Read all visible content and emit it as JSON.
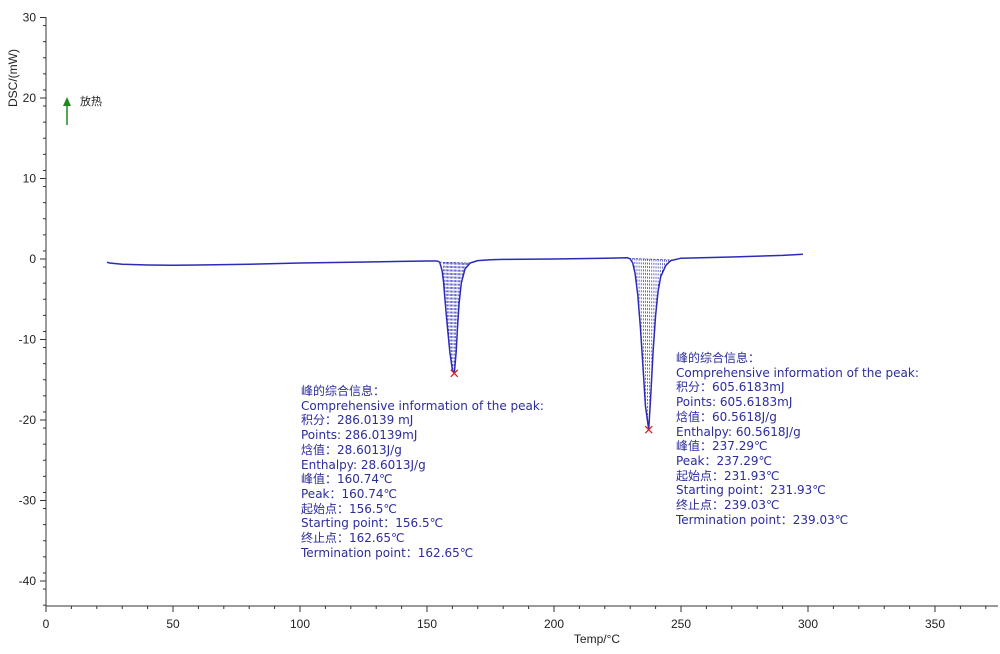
{
  "chart_data": {
    "type": "line",
    "xlabel": "Temp/°C",
    "ylabel": "DSC/(mW)",
    "xlim": [
      0,
      375
    ],
    "ylim": [
      -43,
      30
    ],
    "x_ticks": [
      0,
      50,
      100,
      150,
      200,
      250,
      300,
      350
    ],
    "y_ticks": [
      30,
      20,
      10,
      0,
      -10,
      -20,
      -30,
      -40
    ],
    "grid": false,
    "series": [
      {
        "color": "#2b2bb8",
        "x": [
          24,
          25,
          30,
          40,
          50,
          60,
          80,
          100,
          120,
          140,
          150,
          154,
          155,
          156,
          156.5,
          157,
          158,
          159,
          160,
          160.74,
          161.5,
          162,
          162.65,
          163.5,
          165,
          167,
          170,
          175,
          180,
          200,
          220,
          229,
          230,
          231,
          231.93,
          233,
          234,
          235,
          236,
          237.29,
          238,
          239.03,
          240,
          241,
          242,
          244,
          246,
          250,
          270,
          290,
          298
        ],
        "y": [
          -0.4,
          -0.5,
          -0.65,
          -0.75,
          -0.78,
          -0.75,
          -0.65,
          -0.5,
          -0.4,
          -0.3,
          -0.25,
          -0.25,
          -0.4,
          -1.5,
          -2.8,
          -4.8,
          -8.3,
          -11.6,
          -13.8,
          -14.2,
          -11.5,
          -8.5,
          -5.5,
          -3.0,
          -1.2,
          -0.5,
          -0.2,
          -0.1,
          -0.05,
          0.0,
          0.1,
          0.15,
          0.0,
          -0.5,
          -1.8,
          -4.5,
          -8.5,
          -13.2,
          -18.2,
          -21.2,
          -17.5,
          -11.5,
          -7.0,
          -4.0,
          -2.2,
          -0.8,
          -0.2,
          0.1,
          0.25,
          0.45,
          0.6
        ]
      }
    ],
    "peak_markers": [
      {
        "x": 160.74,
        "y": -14.2
      },
      {
        "x": 237.29,
        "y": -21.2
      }
    ],
    "shaded_peaks": [
      {
        "x_start": 156.5,
        "x_end": 166
      },
      {
        "x_start": 231.0,
        "x_end": 246
      }
    ],
    "legend_arrow": {
      "label": "放热",
      "color": "#1e8a1e"
    },
    "annotation_color": "#2c2c9c",
    "annotations": [
      {
        "lines": [
          "峰的综合信息：",
          "Comprehensive information of the peak:",
          "积分：286.0139 mJ",
          "Points: 286.0139mJ",
          "焓值：28.6013J/g",
          "Enthalpy: 28.6013J/g",
          "峰值：160.74℃",
          "Peak：160.74℃",
          "起始点：156.5℃",
          "Starting point：156.5℃",
          "终止点：162.65℃",
          "Termination point：162.65℃"
        ]
      },
      {
        "lines": [
          "峰的综合信息：",
          "Comprehensive information of the peak:",
          "积分：605.6183mJ",
          "Points: 605.6183mJ",
          "焓值：60.5618J/g",
          "Enthalpy: 60.5618J/g",
          "峰值：237.29℃",
          "Peak：237.29℃",
          "起始点：231.93℃",
          "Starting point：231.93℃",
          "终止点：239.03℃",
          "Termination point：239.03℃"
        ]
      }
    ]
  }
}
